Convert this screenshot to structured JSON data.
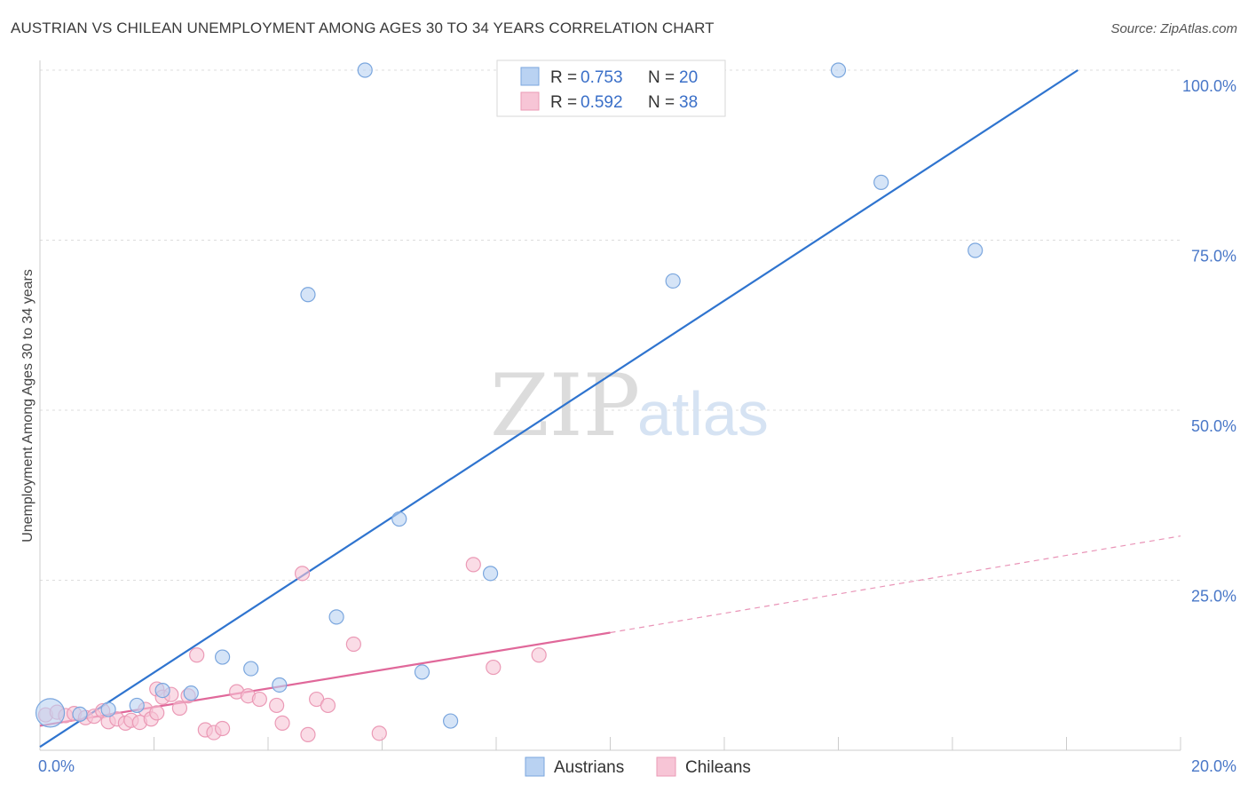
{
  "title": "AUSTRIAN VS CHILEAN UNEMPLOYMENT AMONG AGES 30 TO 34 YEARS CORRELATION CHART",
  "source": "Source: ZipAtlas.com",
  "watermark": {
    "zip": "ZIP",
    "atlas": "atlas"
  },
  "colors": {
    "austrians_fill": "#b9d2f2",
    "austrians_stroke": "#7aa6de",
    "austrians_line": "#2f74cf",
    "chileans_fill": "#f7c5d6",
    "chileans_stroke": "#eb9ab6",
    "chileans_line": "#e0689a",
    "axis_label": "#4a78c8",
    "grid": "#dddddd"
  },
  "legend": {
    "rows": [
      {
        "r_label": "R = ",
        "r_value": "0.753",
        "n_label": "N = ",
        "n_value": "20"
      },
      {
        "r_label": "R = ",
        "r_value": "0.592",
        "n_label": "N = ",
        "n_value": "38"
      }
    ]
  },
  "chart_data": {
    "type": "scatter",
    "title": "AUSTRIAN VS CHILEAN UNEMPLOYMENT AMONG AGES 30 TO 34 YEARS CORRELATION CHART",
    "xlabel": "",
    "ylabel": "Unemployment Among Ages 30 to 34 years",
    "xlim": [
      0,
      20
    ],
    "ylim": [
      0,
      100
    ],
    "x_tick_labels": [
      "0.0%",
      "20.0%"
    ],
    "y_tick_labels": [
      "25.0%",
      "50.0%",
      "75.0%",
      "100.0%"
    ],
    "grid": true,
    "legend_position": "top-center",
    "series": [
      {
        "name": "Austrians",
        "r": 0.753,
        "n": 20,
        "points": [
          [
            0.18,
            5.5
          ],
          [
            0.7,
            5.3
          ],
          [
            1.2,
            6.0
          ],
          [
            1.7,
            6.6
          ],
          [
            2.15,
            8.8
          ],
          [
            2.65,
            8.4
          ],
          [
            3.2,
            13.7
          ],
          [
            3.7,
            12.0
          ],
          [
            4.2,
            9.6
          ],
          [
            4.7,
            67.0
          ],
          [
            5.2,
            19.6
          ],
          [
            5.7,
            100.0
          ],
          [
            6.3,
            34.0
          ],
          [
            6.7,
            11.5
          ],
          [
            7.2,
            4.3
          ],
          [
            7.9,
            26.0
          ],
          [
            11.1,
            69.0
          ],
          [
            14.0,
            100.0
          ],
          [
            14.75,
            83.5
          ],
          [
            16.4,
            73.5
          ]
        ],
        "trend": {
          "x0": 0.0,
          "y0": 0.5,
          "x1": 18.2,
          "y1": 100.0,
          "dashed_extension": false
        }
      },
      {
        "name": "Chileans",
        "r": 0.592,
        "n": 38,
        "points": [
          [
            0.1,
            5.2
          ],
          [
            0.3,
            5.6
          ],
          [
            0.45,
            5.1
          ],
          [
            0.6,
            5.4
          ],
          [
            0.8,
            4.8
          ],
          [
            0.95,
            5.0
          ],
          [
            1.1,
            5.8
          ],
          [
            1.2,
            4.2
          ],
          [
            1.35,
            4.6
          ],
          [
            1.5,
            4.0
          ],
          [
            1.6,
            4.4
          ],
          [
            1.75,
            4.1
          ],
          [
            1.85,
            6.0
          ],
          [
            1.95,
            4.6
          ],
          [
            2.05,
            9.0
          ],
          [
            2.15,
            7.8
          ],
          [
            2.3,
            8.2
          ],
          [
            2.45,
            6.2
          ],
          [
            2.6,
            8.0
          ],
          [
            2.75,
            14.0
          ],
          [
            2.9,
            3.0
          ],
          [
            3.05,
            2.6
          ],
          [
            3.2,
            3.2
          ],
          [
            3.45,
            8.6
          ],
          [
            3.65,
            8.0
          ],
          [
            3.85,
            7.5
          ],
          [
            4.15,
            6.6
          ],
          [
            4.25,
            4.0
          ],
          [
            4.6,
            26.0
          ],
          [
            4.7,
            2.3
          ],
          [
            4.85,
            7.5
          ],
          [
            5.05,
            6.6
          ],
          [
            5.5,
            15.6
          ],
          [
            5.95,
            2.5
          ],
          [
            7.6,
            27.3
          ],
          [
            7.95,
            12.2
          ],
          [
            8.75,
            14.0
          ],
          [
            2.05,
            5.5
          ]
        ],
        "trend": {
          "x0": 0.0,
          "y0": 3.6,
          "x1": 10.0,
          "y1": 17.3,
          "dashed_to_x": 20.0,
          "dashed_to_y": 31.5
        }
      }
    ]
  }
}
